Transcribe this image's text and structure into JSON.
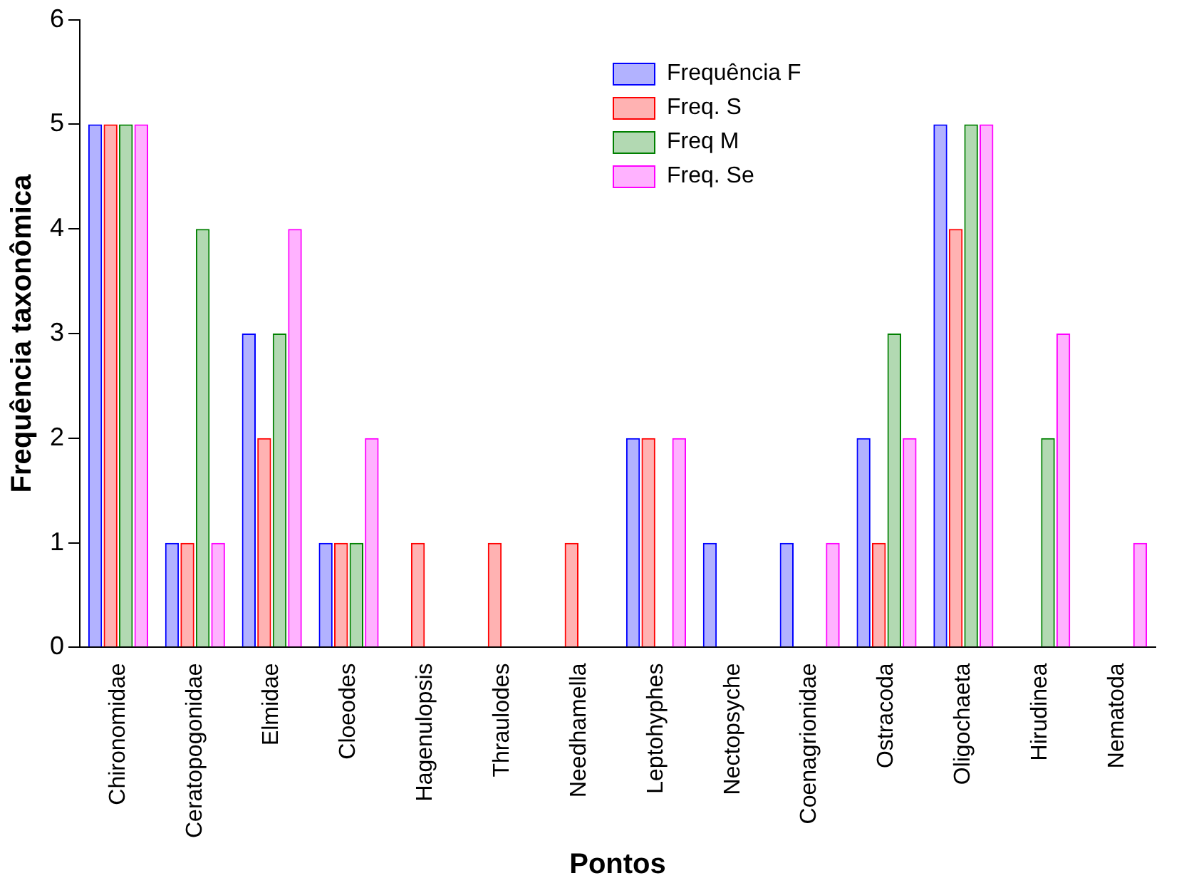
{
  "chart_data": {
    "type": "bar",
    "xlabel": "Pontos",
    "ylabel": "Frequência taxonômica",
    "categories": [
      "Chironomidae",
      "Ceratopogonidae",
      "Elmidae",
      "Cloeodes",
      "Hagenulopsis",
      "Thraulodes",
      "Needhamella",
      "Leptohyphes",
      "Nectopsyche",
      "Coenagrionidae",
      "Ostracoda",
      "Oligochaeta",
      "Hirudinea",
      "Nematoda"
    ],
    "series": [
      {
        "name": "Frequência F",
        "color": "#0000ff",
        "values": [
          5,
          1,
          3,
          1,
          0,
          0,
          0,
          2,
          1,
          1,
          2,
          5,
          0,
          0
        ]
      },
      {
        "name": "Freq. S",
        "color": "#ff0000",
        "values": [
          5,
          1,
          2,
          1,
          1,
          1,
          1,
          2,
          0,
          0,
          1,
          4,
          0,
          0
        ]
      },
      {
        "name": "Freq M",
        "color": "#008000",
        "values": [
          5,
          4,
          3,
          1,
          0,
          0,
          0,
          0,
          0,
          0,
          3,
          5,
          2,
          0
        ]
      },
      {
        "name": "Freq. Se",
        "color": "#ff00ff",
        "values": [
          5,
          1,
          4,
          2,
          0,
          0,
          0,
          2,
          0,
          1,
          2,
          5,
          3,
          1
        ]
      }
    ],
    "ylim": [
      0,
      6
    ],
    "yticks": [
      0,
      1,
      2,
      3,
      4,
      5,
      6
    ],
    "grid": false,
    "legend": "top right"
  }
}
